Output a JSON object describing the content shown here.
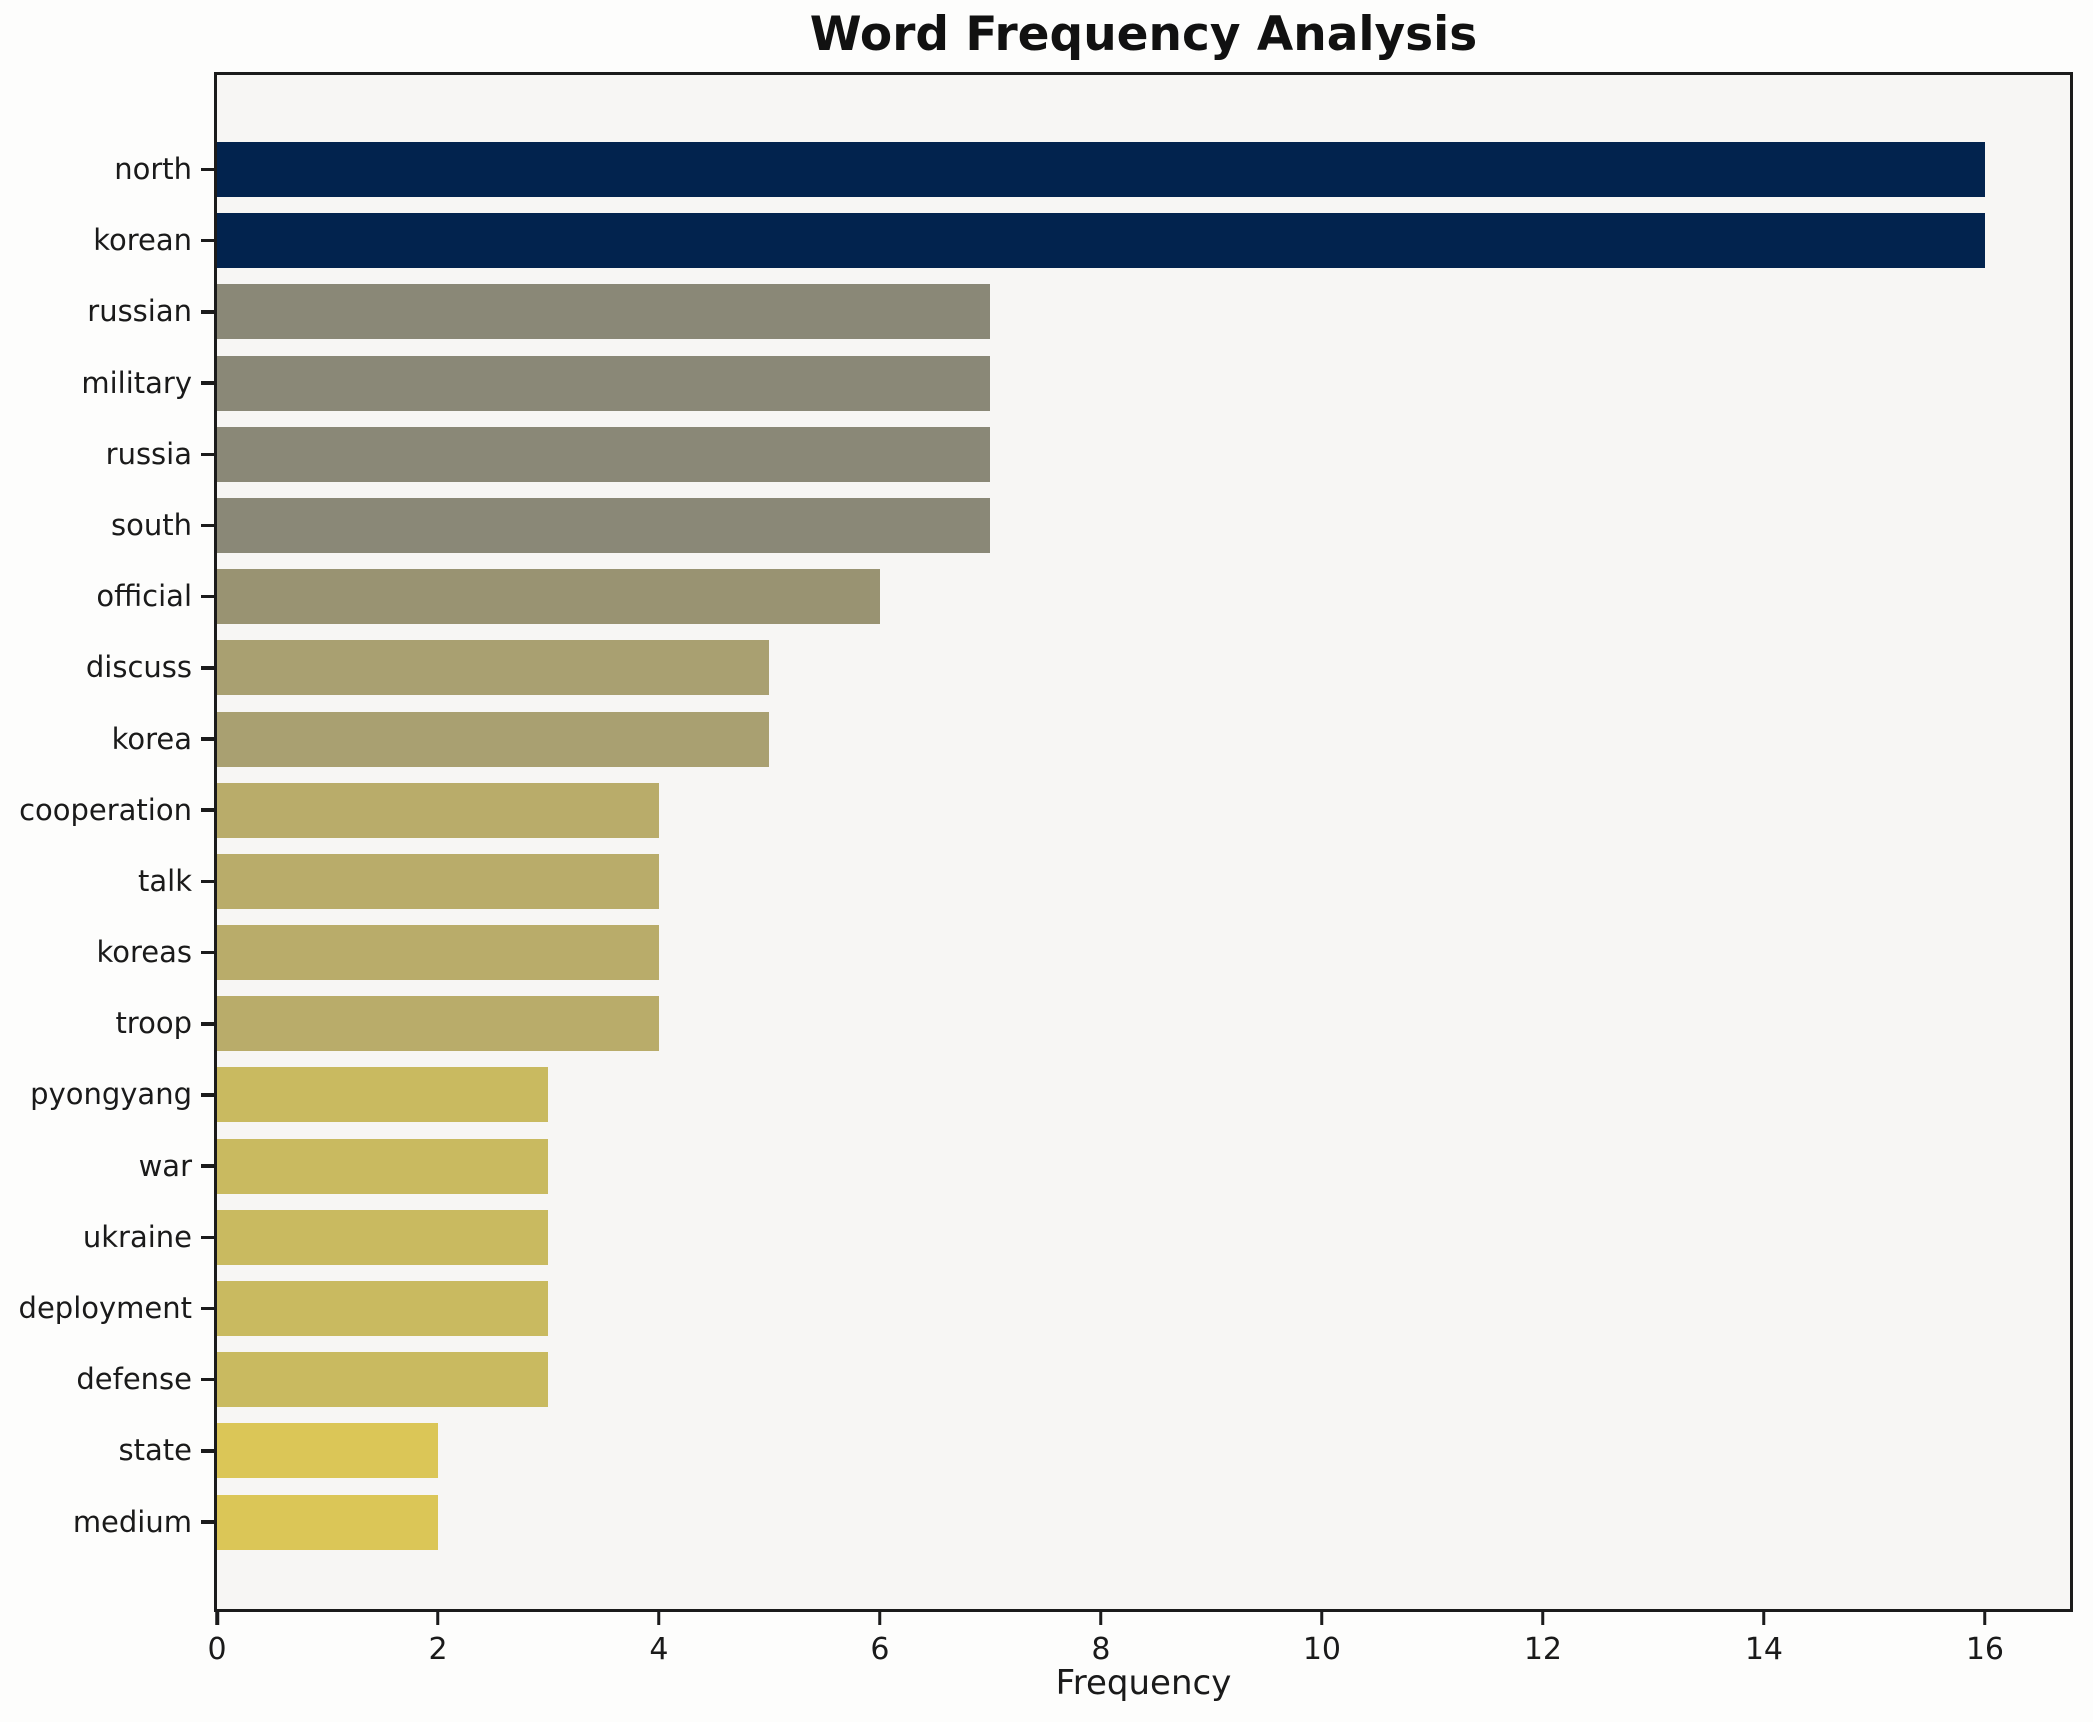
{
  "chart_data": {
    "type": "bar",
    "orientation": "horizontal",
    "title": "Word Frequency Analysis",
    "xlabel": "Frequency",
    "ylabel": "",
    "categories": [
      "north",
      "korean",
      "russian",
      "military",
      "russia",
      "south",
      "official",
      "discuss",
      "korea",
      "cooperation",
      "talk",
      "koreas",
      "troop",
      "pyongyang",
      "war",
      "ukraine",
      "deployment",
      "defense",
      "state",
      "medium"
    ],
    "values": [
      16,
      16,
      7,
      7,
      7,
      7,
      6,
      5,
      5,
      4,
      4,
      4,
      4,
      3,
      3,
      3,
      3,
      3,
      2,
      2
    ],
    "bar_colors": [
      "#02234e",
      "#02234e",
      "#8a8877",
      "#8a8877",
      "#8a8877",
      "#8a8877",
      "#999372",
      "#a9a071",
      "#a9a071",
      "#b9ac6a",
      "#b9ac6a",
      "#b9ac6a",
      "#b9ac6a",
      "#c9ba60",
      "#c9ba60",
      "#c9ba60",
      "#c9ba60",
      "#c9ba60",
      "#dbc657",
      "#dbc657"
    ],
    "xticks": [
      0,
      2,
      4,
      6,
      8,
      10,
      12,
      14,
      16
    ],
    "xlim": [
      0,
      16.77
    ],
    "grid": false,
    "legend_position": "none",
    "colors": {
      "figure_background": "#fdfdfc",
      "axes_background": "#f7f6f4",
      "spine": "#1b1b1b",
      "text": "#1a1a1a"
    }
  }
}
